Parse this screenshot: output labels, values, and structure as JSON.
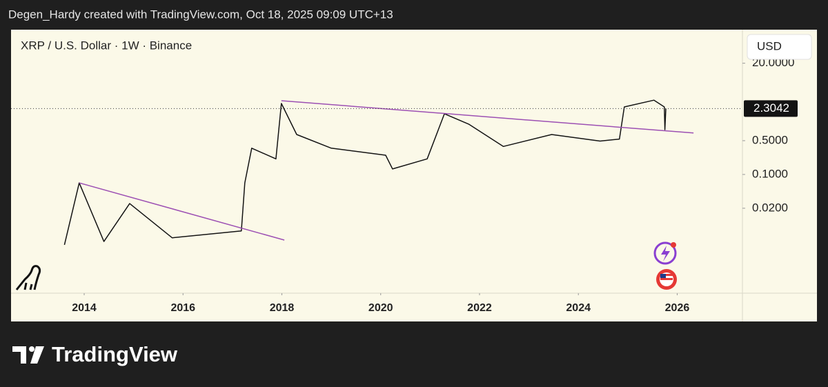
{
  "header": "Degen_Hardy created with TradingView.com, Oct 18, 2025 09:09 UTC+13",
  "footer": "TradingView",
  "chart_data": {
    "type": "line",
    "title": "XRP / U.S. Dollar · 1W · Binance",
    "currency": "USD",
    "log_scale": true,
    "color": "#131313",
    "x": [
      2013.6,
      2013.9,
      2014.4,
      2014.92,
      2015.78,
      2017.18,
      2017.25,
      2017.39,
      2017.88,
      2017.99,
      2018.3,
      2019.0,
      2020.1,
      2020.24,
      2020.94,
      2021.29,
      2021.78,
      2022.48,
      2023.46,
      2024.44,
      2024.83,
      2024.93,
      2025.53,
      2025.74,
      2025.75,
      2025.77
    ],
    "values": [
      0.0035,
      0.067,
      0.0041,
      0.025,
      0.0049,
      0.0068,
      0.067,
      0.35,
      0.21,
      2.94,
      0.67,
      0.35,
      0.25,
      0.13,
      0.21,
      1.8,
      1.1,
      0.38,
      0.67,
      0.49,
      0.54,
      2.5,
      3.45,
      2.5,
      0.84,
      2.3042
    ],
    "last_price": 2.3042,
    "trendlines": [
      {
        "color": "#9c4fb3",
        "x": [
          2013.9,
          2018.05
        ],
        "values": [
          0.067,
          0.0044
        ]
      },
      {
        "color": "#9c4fb3",
        "x": [
          2017.99,
          2026.33
        ],
        "values": [
          3.36,
          0.72
        ]
      }
    ],
    "xlim": [
      2012.52,
      2027.32
    ],
    "xticks": [
      2014,
      2016,
      2018,
      2020,
      2022,
      2024,
      2026
    ],
    "ylim": [
      0.00035,
      99
    ],
    "yticks": [
      {
        "value": 20,
        "label": "20.0000"
      },
      {
        "value": 0.5,
        "label": "0.5000"
      },
      {
        "value": 0.1,
        "label": "0.1000"
      },
      {
        "value": 0.02,
        "label": "0.0200"
      }
    ]
  }
}
